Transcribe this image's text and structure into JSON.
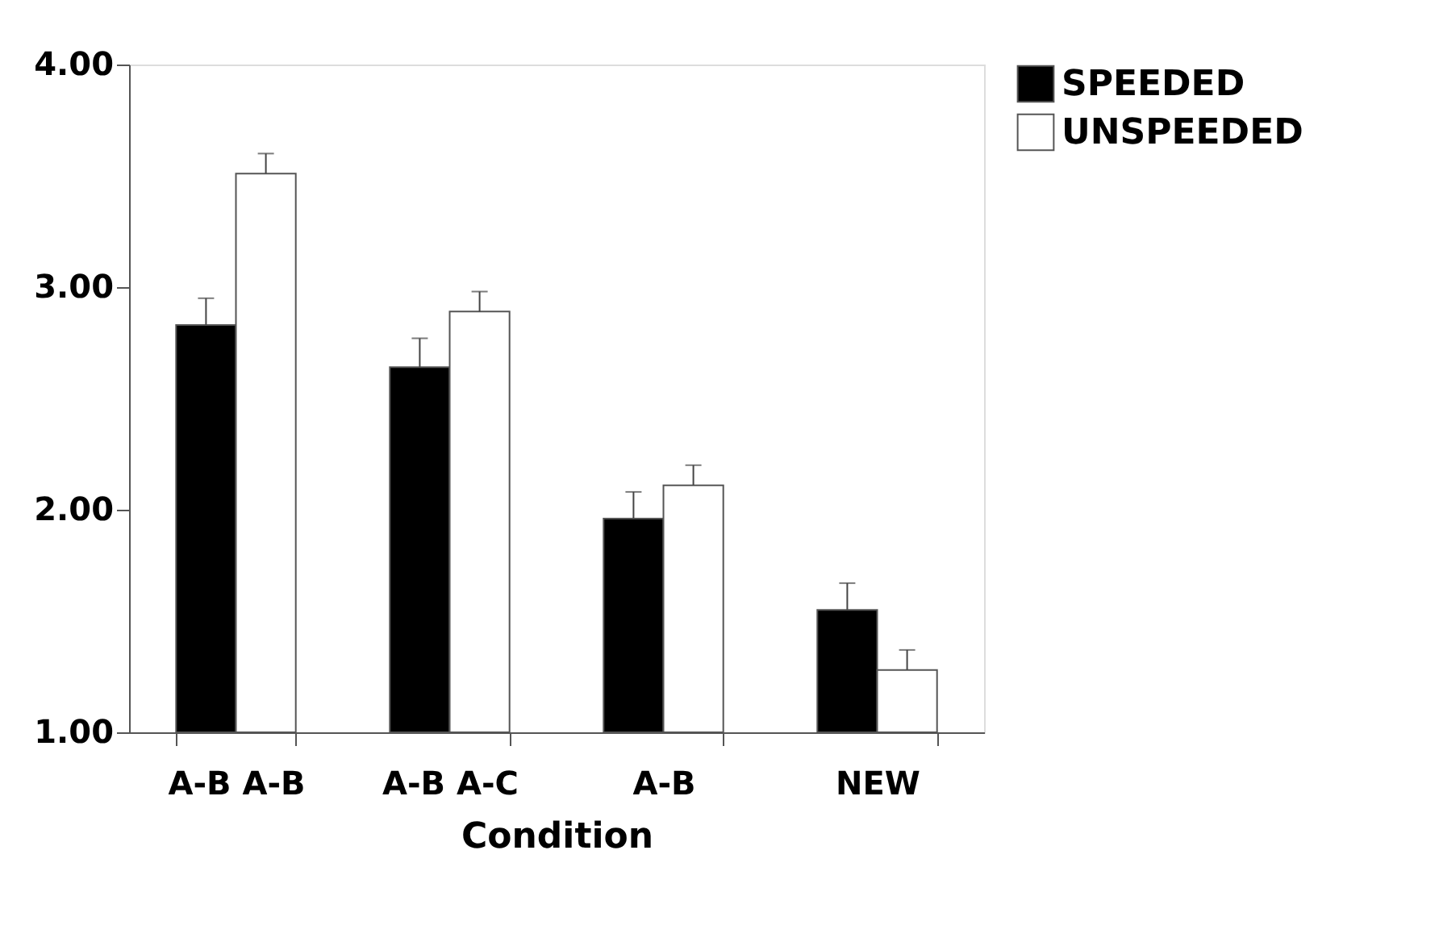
{
  "chart_data": {
    "type": "bar",
    "xlabel": "Condition",
    "categories": [
      "A-B A-B",
      "A-B A-C",
      "A-B",
      "NEW"
    ],
    "series": [
      {
        "name": "SPEEDED",
        "color": "#000000",
        "values": [
          2.83,
          2.64,
          1.96,
          1.55
        ],
        "errors": [
          [
            2.83,
            2.95
          ],
          [
            2.64,
            2.77
          ],
          [
            1.96,
            2.08
          ],
          [
            1.55,
            1.67
          ]
        ]
      },
      {
        "name": "UNSPEEDED",
        "color": "#ffffff",
        "values": [
          3.51,
          2.89,
          2.11,
          1.28
        ],
        "errors": [
          [
            3.51,
            3.6
          ],
          [
            2.89,
            2.98
          ],
          [
            2.11,
            2.2
          ],
          [
            1.28,
            1.37
          ]
        ]
      }
    ],
    "ylim": [
      1,
      4
    ],
    "yticks": [
      {
        "value": 1,
        "label": "1.00"
      },
      {
        "value": 2,
        "label": "2.00"
      },
      {
        "value": 3,
        "label": "3.00"
      },
      {
        "value": 4,
        "label": "4.00"
      }
    ],
    "legend": "right",
    "grid": false
  }
}
